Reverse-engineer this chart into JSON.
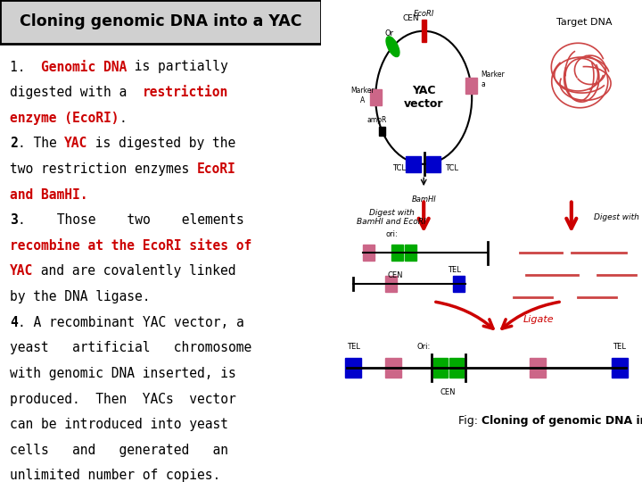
{
  "title": "Cloning genomic DNA into a YAC",
  "bg_color": "#f0f0f0",
  "text_color": "#000000",
  "red_color": "#cc0000",
  "fig_caption": "Fig: Cloning of genomic DNA into a YAC",
  "left_text_lines": [
    {
      "parts": [
        {
          "text": "1. ",
          "color": "black",
          "bold": true,
          "size": 11
        },
        {
          "text": "Genomic DNA",
          "color": "#cc0000",
          "bold": true,
          "size": 11
        },
        {
          "text": " is partially",
          "color": "black",
          "bold": false,
          "size": 11
        }
      ]
    },
    {
      "parts": [
        {
          "text": "digested with a ",
          "color": "black",
          "bold": false,
          "size": 11
        },
        {
          "text": "restriction",
          "color": "#cc0000",
          "bold": true,
          "size": 11
        }
      ]
    },
    {
      "parts": [
        {
          "text": "enzyme (EcoRI)",
          "color": "#cc0000",
          "bold": true,
          "size": 11
        },
        {
          "text": ".",
          "color": "black",
          "bold": false,
          "size": 11
        }
      ]
    },
    {
      "parts": [
        {
          "text": "2",
          "color": "black",
          "bold": true,
          "size": 11
        },
        {
          "text": ". The ",
          "color": "black",
          "bold": false,
          "size": 11
        },
        {
          "text": "YAC",
          "color": "#cc0000",
          "bold": true,
          "size": 11
        },
        {
          "text": " is digested by the",
          "color": "black",
          "bold": false,
          "size": 11
        }
      ]
    },
    {
      "parts": [
        {
          "text": "two restriction enzymes ",
          "color": "black",
          "bold": false,
          "size": 11
        },
        {
          "text": "EcoRI",
          "color": "#cc0000",
          "bold": true,
          "size": 11
        }
      ]
    },
    {
      "parts": [
        {
          "text": "and BamHI.",
          "color": "#cc0000",
          "bold": true,
          "size": 11
        }
      ]
    },
    {
      "parts": [
        {
          "text": "3",
          "color": "black",
          "bold": true,
          "size": 11
        },
        {
          "text": ".    Those   two    elements",
          "color": "black",
          "bold": false,
          "size": 11
        }
      ]
    },
    {
      "parts": [
        {
          "text": "recombine at the EcoRI sites of",
          "color": "#cc0000",
          "bold": true,
          "size": 11
        }
      ]
    },
    {
      "parts": [
        {
          "text": "YAC",
          "color": "#cc0000",
          "bold": true,
          "size": 11
        },
        {
          "text": " and are covalently linked",
          "color": "black",
          "bold": false,
          "size": 11
        }
      ]
    },
    {
      "parts": [
        {
          "text": "by the DNA ligase.",
          "color": "black",
          "bold": false,
          "size": 11
        }
      ]
    },
    {
      "parts": [
        {
          "text": "4",
          "color": "black",
          "bold": true,
          "size": 11
        },
        {
          "text": ". A recombinant YAC vector, a",
          "color": "black",
          "bold": false,
          "size": 11
        }
      ]
    },
    {
      "parts": [
        {
          "text": "yeast   artificial   chromosome",
          "color": "black",
          "bold": false,
          "size": 11
        }
      ]
    },
    {
      "parts": [
        {
          "text": "with genomic DNA inserted, is",
          "color": "black",
          "bold": false,
          "size": 11
        }
      ]
    },
    {
      "parts": [
        {
          "text": "produced.  Then  YACs  vector",
          "color": "black",
          "bold": false,
          "size": 11
        }
      ]
    },
    {
      "parts": [
        {
          "text": "can be introduced into yeast",
          "color": "black",
          "bold": false,
          "size": 11
        }
      ]
    },
    {
      "parts": [
        {
          "text": "cells    and    generated    an",
          "color": "black",
          "bold": false,
          "size": 11
        }
      ]
    },
    {
      "parts": [
        {
          "text": "unlimited number of copies.",
          "color": "black",
          "bold": false,
          "size": 11
        }
      ]
    }
  ],
  "colors": {
    "blue": "#0000cc",
    "green": "#00aa00",
    "pink": "#cc6688",
    "red": "#cc0000",
    "black": "#000000",
    "dark_red": "#8b0000"
  }
}
